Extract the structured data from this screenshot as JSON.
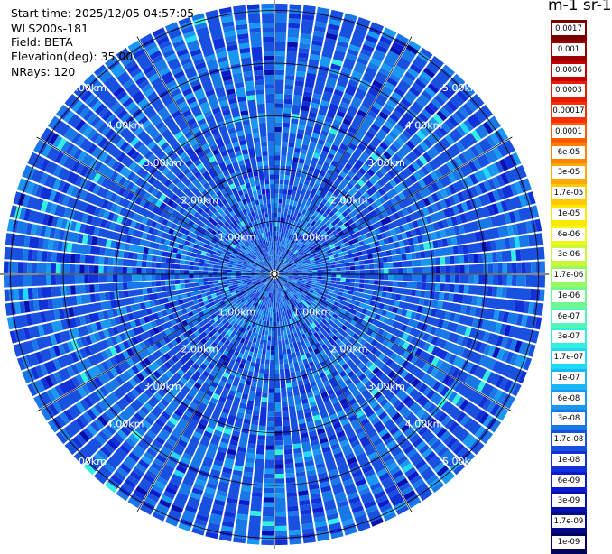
{
  "header": {
    "start_time": "Start time: 2025/12/05 04:57:05",
    "instrument": "WLS200s-181",
    "field": "Field: BETA",
    "elevation": "Elevation(deg): 35.00",
    "nrays": "NRays: 120"
  },
  "colorbar": {
    "title": "m-1 sr-1",
    "labels": [
      "0.0017",
      "0.001",
      "0.0006",
      "0.0003",
      "0.00017",
      "0.0001",
      "6e-05",
      "3e-05",
      "1.7e-05",
      "1e-05",
      "6e-06",
      "3e-06",
      "1.7e-06",
      "1e-06",
      "6e-07",
      "3e-07",
      "1.7e-07",
      "1e-07",
      "6e-08",
      "3e-08",
      "1.7e-08",
      "1e-08",
      "6e-09",
      "3e-09",
      "1.7e-09",
      "1e-09"
    ],
    "colors": [
      "#7a0000",
      "#9a0000",
      "#c40000",
      "#e81c00",
      "#ff3000",
      "#ff5a00",
      "#ff8200",
      "#ffa800",
      "#ffca00",
      "#ffe800",
      "#f0f81a",
      "#c8f838",
      "#98f860",
      "#70f890",
      "#50f8b8",
      "#30f0e0",
      "#20d8f8",
      "#18b8f8",
      "#1898f0",
      "#1878e8",
      "#1850e0",
      "#1030d8",
      "#0a1acc",
      "#0610b0",
      "#040a88",
      "#02055a"
    ]
  },
  "chart_data": {
    "type": "heatmap",
    "projection": "polar PPI scan",
    "field": "BETA",
    "units": "m-1 sr-1",
    "elevation_deg": 35.0,
    "n_rays": 120,
    "range_rings_km": [
      1,
      2,
      3,
      4,
      5
    ],
    "ring_labels": [
      "1.00km",
      "2.00km",
      "3.00km",
      "4.00km",
      "5.00km"
    ],
    "max_range_km": 5.2,
    "color_scale": "log",
    "value_range": [
      1e-09,
      0.0017
    ],
    "dominant_values": [
      1e-08,
      1.7e-08,
      3e-08,
      6e-08,
      1e-07
    ],
    "note_values": "background aerosol backscatter mostly 1e-08 to 1e-07 across all rays"
  }
}
